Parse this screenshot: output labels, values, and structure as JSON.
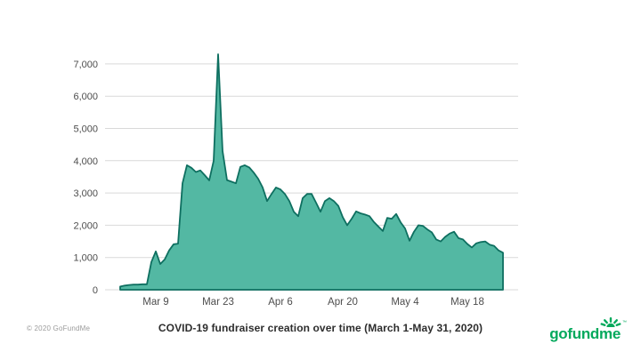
{
  "footer": {
    "copyright": "© 2020 GoFundMe",
    "title": "COVID-19 fundraiser creation over time (March 1-May 31, 2020)"
  },
  "logo": {
    "part1": "gofund",
    "part2": "me",
    "tm": "™",
    "color": "#02a95c",
    "sun_icon": "sunburst-rays"
  },
  "chart_data": {
    "type": "area",
    "title": "COVID-19 fundraiser creation over time (March 1-May 31, 2020)",
    "xlabel": "",
    "ylabel": "",
    "x_start_date": "2020-03-01",
    "x_unit": "day",
    "ylim": [
      0,
      7500
    ],
    "grid": true,
    "legend_position": "none",
    "colors": {
      "area_fill": "#53b8a3",
      "area_stroke": "#0e6f60",
      "gridline": "#d9d9d9",
      "axis_text": "#4d4d4d"
    },
    "y_ticks": [
      {
        "value": 0,
        "label": "0"
      },
      {
        "value": 1000,
        "label": "1,000"
      },
      {
        "value": 2000,
        "label": "2,000"
      },
      {
        "value": 3000,
        "label": "3,000"
      },
      {
        "value": 4000,
        "label": "4,000"
      },
      {
        "value": 5000,
        "label": "5,000"
      },
      {
        "value": 6000,
        "label": "6,000"
      },
      {
        "value": 7000,
        "label": "7,000"
      }
    ],
    "x_ticks": [
      {
        "day": 8,
        "label": "Mar 9"
      },
      {
        "day": 22,
        "label": "Mar 23"
      },
      {
        "day": 36,
        "label": "Apr 6"
      },
      {
        "day": 50,
        "label": "Apr 20"
      },
      {
        "day": 64,
        "label": "May 4"
      },
      {
        "day": 78,
        "label": "May 18"
      }
    ],
    "values": [
      100,
      130,
      150,
      160,
      160,
      170,
      170,
      860,
      1190,
      800,
      940,
      1220,
      1410,
      1430,
      3300,
      3860,
      3780,
      3650,
      3700,
      3550,
      3390,
      4000,
      7300,
      4300,
      3400,
      3350,
      3300,
      3810,
      3860,
      3790,
      3630,
      3440,
      3170,
      2750,
      2970,
      3170,
      3110,
      2970,
      2750,
      2420,
      2280,
      2840,
      2970,
      2970,
      2700,
      2420,
      2750,
      2840,
      2750,
      2600,
      2250,
      2000,
      2200,
      2430,
      2370,
      2330,
      2280,
      2100,
      1960,
      1820,
      2230,
      2200,
      2350,
      2090,
      1900,
      1520,
      1800,
      2000,
      1980,
      1870,
      1780,
      1560,
      1500,
      1640,
      1740,
      1800,
      1600,
      1560,
      1420,
      1310,
      1440,
      1480,
      1500,
      1400,
      1360,
      1220,
      1150
    ]
  }
}
